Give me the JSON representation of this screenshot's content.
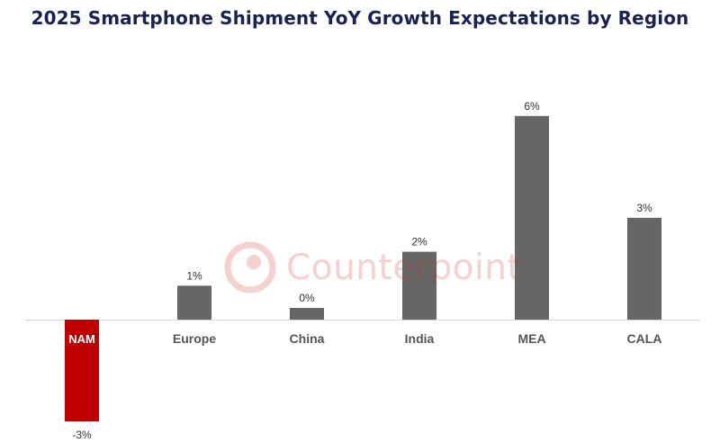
{
  "chart_data": {
    "type": "bar",
    "title": "2025 Smartphone Shipment YoY Growth Expectations by Region",
    "categories": [
      "NAM",
      "Europe",
      "China",
      "India",
      "MEA",
      "CALA"
    ],
    "values": [
      -3,
      1,
      0,
      2,
      6,
      3
    ],
    "data_labels": [
      "-3%",
      "1%",
      "0%",
      "2%",
      "6%",
      "3%"
    ],
    "highlight_category": "NAM",
    "colors": {
      "bar": "#666666",
      "highlight": "#c00000",
      "axis": "#d9d9d9",
      "title": "#1a2350",
      "label": "#555555"
    },
    "xlabel": "",
    "ylabel": "",
    "ylim": [
      -3,
      6
    ]
  },
  "watermark": {
    "text": "Counterpoint",
    "icon": "counterpoint-logo-icon",
    "color": "#d0302a"
  }
}
